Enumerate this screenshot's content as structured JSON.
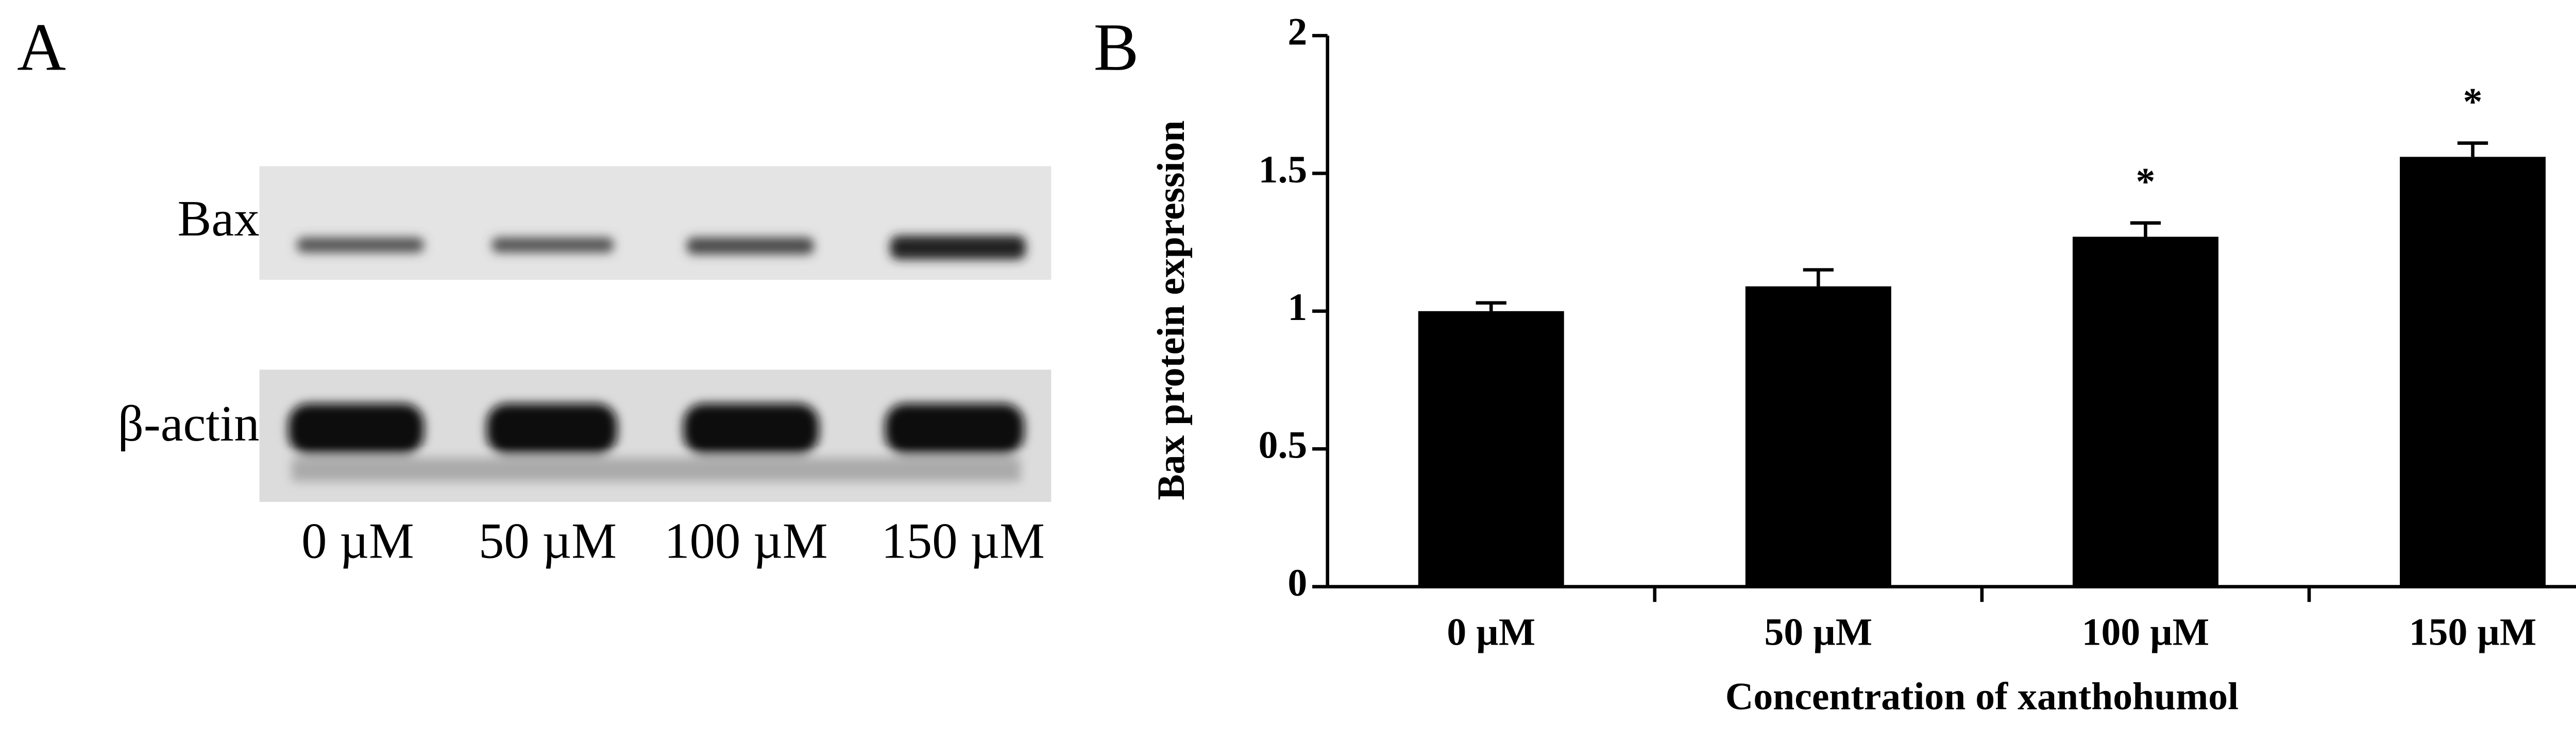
{
  "panel_a": {
    "label": "A",
    "rows": [
      "Bax",
      "β-actin"
    ],
    "lanes": [
      "0 µM",
      "50 µM",
      "100 µM",
      "150 µM"
    ]
  },
  "chart_data": {
    "type": "bar",
    "panel_label": "B",
    "ylabel": "Bax protein expression",
    "xlabel": "Concentration of xanthohumol",
    "categories": [
      "0 µM",
      "50 µM",
      "100 µM",
      "150 µM"
    ],
    "values": [
      1.0,
      1.09,
      1.27,
      1.56
    ],
    "errors": [
      0.03,
      0.06,
      0.05,
      0.05
    ],
    "significance": [
      null,
      null,
      "*",
      "*"
    ],
    "color": "#000000",
    "ylim": [
      0,
      2
    ],
    "yticks": [
      0,
      0.5,
      1,
      1.5,
      2
    ]
  }
}
